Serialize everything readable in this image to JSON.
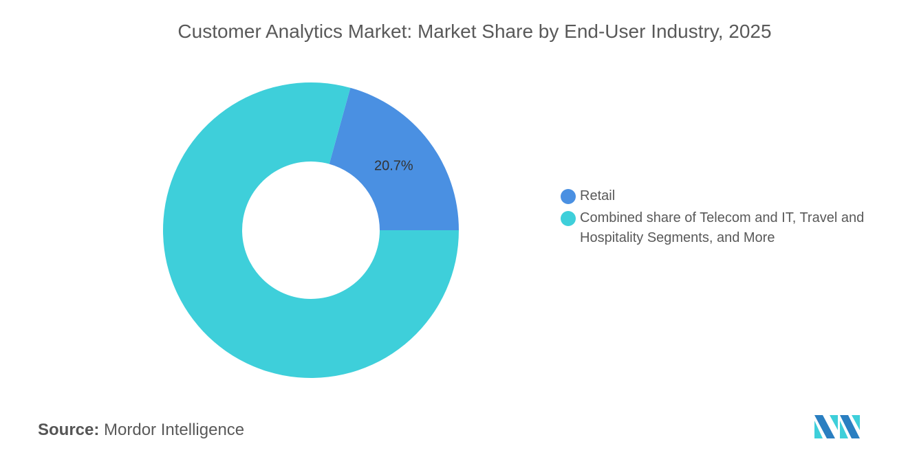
{
  "title": "Customer Analytics Market: Market Share by End-User Industry, 2025",
  "chart_data": {
    "type": "pie",
    "donut": true,
    "title": "Customer Analytics Market: Market Share by End-User Industry, 2025",
    "series": [
      {
        "name": "Retail",
        "value": 20.7,
        "label": "20.7%",
        "color": "#4a90e2"
      },
      {
        "name": "Combined share of Telecom and IT, Travel and Hospitality Segments, and More",
        "value": 79.3,
        "label": "",
        "color": "#3ecfda"
      }
    ],
    "legend_position": "right"
  },
  "source": {
    "label": "Source:",
    "value": "Mordor Intelligence"
  },
  "logo": {
    "text": "Mordor Intelligence",
    "colors": [
      "#2a7fc1",
      "#3ecfda"
    ]
  }
}
